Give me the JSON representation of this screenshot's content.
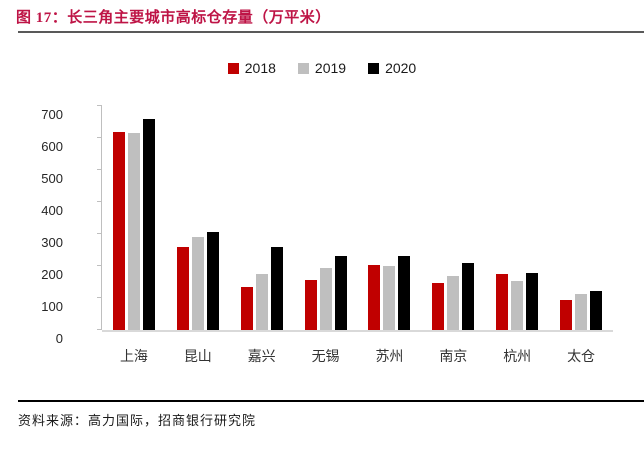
{
  "header": {
    "title": "图 17：长三角主要城市高标仓存量（万平米）",
    "title_color": "#be1446",
    "rule_color": "#595959"
  },
  "footer": {
    "source": "资料来源：高力国际，招商银行研究院"
  },
  "chart_data": {
    "type": "bar",
    "title": "长三角主要城市高标仓存量（万平米）",
    "categories": [
      "上海",
      "昆山",
      "嘉兴",
      "无锡",
      "苏州",
      "南京",
      "杭州",
      "太仓"
    ],
    "series": [
      {
        "name": "2018",
        "color": "#c00000",
        "values": [
          620,
          260,
          135,
          156,
          202,
          148,
          176,
          94
        ]
      },
      {
        "name": "2019",
        "color": "#bfbfbf",
        "values": [
          616,
          290,
          176,
          194,
          199,
          170,
          153,
          114
        ]
      },
      {
        "name": "2020",
        "color": "#000000",
        "values": [
          660,
          305,
          258,
          232,
          231,
          210,
          179,
          122
        ]
      }
    ],
    "xlabel": "",
    "ylabel": "",
    "ylim": [
      0,
      700
    ],
    "ytick_step": 100,
    "grid": false,
    "legend_position": "top"
  }
}
